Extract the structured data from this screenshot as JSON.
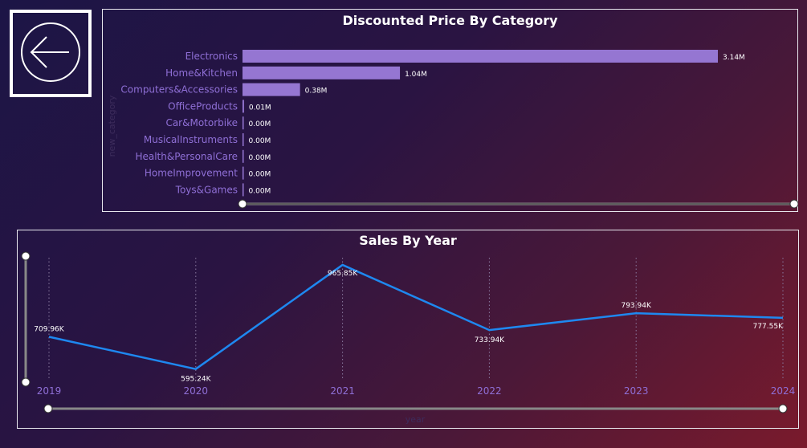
{
  "nav": {
    "back_icon": "arrow-left-circle-icon"
  },
  "colors": {
    "bar": "#9576d2",
    "line": "#1e88f0",
    "axis_label": "#8f6fd6",
    "axis_title": "#3d2c5c"
  },
  "chart_data": [
    {
      "type": "bar",
      "orientation": "horizontal",
      "title": "Discounted Price By Category",
      "ylabel": "new_category",
      "categories": [
        "Electronics",
        "Home&Kitchen",
        "Computers&Accessories",
        "OfficeProducts",
        "Car&Motorbike",
        "MusicalInstruments",
        "Health&PersonalCare",
        "HomeImprovement",
        "Toys&Games"
      ],
      "values": [
        3.14,
        1.04,
        0.38,
        0.01,
        0.0,
        0.0,
        0.0,
        0.0,
        0.0
      ],
      "value_labels": [
        "3.14M",
        "1.04M",
        "0.38M",
        "0.01M",
        "0.00M",
        "0.00M",
        "0.00M",
        "0.00M",
        "0.00M"
      ],
      "xlim": [
        0,
        3.14
      ],
      "grid": false
    },
    {
      "type": "line",
      "title": "Sales By Year",
      "xlabel": "year",
      "x": [
        "2019",
        "2020",
        "2021",
        "2022",
        "2023",
        "2024"
      ],
      "values": [
        709.96,
        595.24,
        965.85,
        733.94,
        793.94,
        777.55
      ],
      "value_labels": [
        "709.96K",
        "595.24K",
        "965.85K",
        "733.94K",
        "793.94K",
        "777.55K"
      ],
      "ylim": [
        560,
        1000
      ],
      "grid": "vertical-dotted"
    }
  ]
}
